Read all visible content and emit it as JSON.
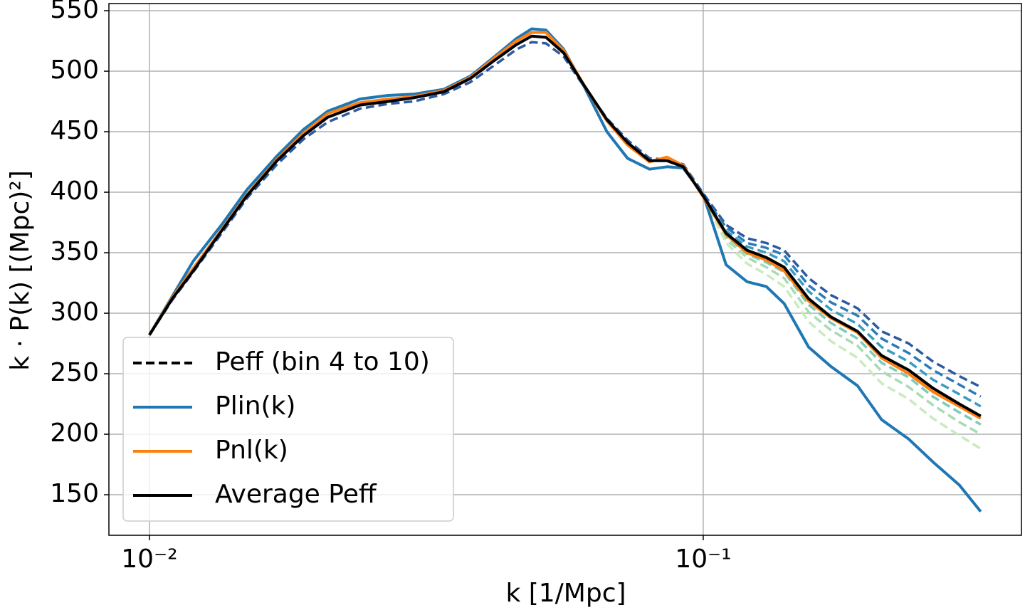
{
  "chart_data": {
    "type": "line",
    "xlabel": "k [1/Mpc]",
    "ylabel": "k · P(k) [(Mpc)²]",
    "xscale": "log",
    "grid": true,
    "xlim": [
      0.00845,
      0.3755
    ],
    "ylim": [
      116.5,
      555.9
    ],
    "xticks": [
      {
        "value": 0.01,
        "label": "10⁻²"
      },
      {
        "value": 0.1,
        "label": "10⁻¹"
      }
    ],
    "yticks": [
      150,
      200,
      250,
      300,
      350,
      400,
      450,
      500,
      550
    ],
    "x": [
      0.01,
      0.011,
      0.012,
      0.0135,
      0.015,
      0.017,
      0.019,
      0.021,
      0.024,
      0.027,
      0.03,
      0.034,
      0.038,
      0.042,
      0.046,
      0.049,
      0.052,
      0.056,
      0.061,
      0.067,
      0.073,
      0.08,
      0.086,
      0.092,
      0.1,
      0.11,
      0.12,
      0.13,
      0.14,
      0.155,
      0.17,
      0.19,
      0.21,
      0.235,
      0.26,
      0.29,
      0.317
    ],
    "legend": {
      "loc": "lower left",
      "extra": {
        "name": "Peff (bin 4 to 10)",
        "color": "#000000",
        "dashed": true
      }
    },
    "series": [
      {
        "color": "#2c5aa0",
        "dashed": true,
        "values": [
          282,
          311,
          334,
          366,
          395,
          423,
          444,
          458,
          469,
          473,
          475,
          481,
          491,
          505,
          518,
          524,
          523,
          512,
          487,
          461,
          443,
          428,
          427,
          423,
          399,
          373,
          362,
          358,
          352,
          329,
          315,
          304,
          285,
          275,
          260,
          248,
          239
        ]
      },
      {
        "color": "#2b7bb9",
        "dashed": true,
        "values": [
          282,
          312,
          335,
          368,
          397,
          426,
          447,
          462,
          472,
          475,
          478,
          483,
          494,
          509,
          522,
          529,
          528,
          515,
          488,
          460,
          441,
          426,
          426,
          421,
          397,
          371,
          358,
          354,
          348,
          323,
          309,
          298,
          279,
          267,
          253,
          241,
          231
        ]
      },
      {
        "color": "#3a9cc0",
        "dashed": true,
        "values": [
          282,
          312,
          335,
          368,
          397,
          426,
          447,
          462,
          472,
          475,
          478,
          483,
          494,
          509,
          522,
          529,
          528,
          515,
          488,
          460,
          441,
          426,
          426,
          421,
          397,
          368,
          355,
          350,
          343,
          318,
          303,
          291,
          272,
          260,
          245,
          233,
          223
        ]
      },
      {
        "color": "#5bb8bd",
        "dashed": true,
        "values": [
          282,
          312,
          335,
          368,
          397,
          426,
          447,
          462,
          472,
          475,
          478,
          483,
          494,
          509,
          522,
          529,
          528,
          515,
          488,
          460,
          441,
          426,
          426,
          421,
          397,
          366,
          352,
          346,
          338,
          312,
          297,
          285,
          265,
          253,
          238,
          225,
          215
        ]
      },
      {
        "color": "#7ccbb8",
        "dashed": true,
        "values": [
          282,
          312,
          335,
          368,
          397,
          426,
          447,
          462,
          472,
          475,
          478,
          483,
          494,
          509,
          522,
          529,
          528,
          515,
          488,
          460,
          441,
          426,
          426,
          421,
          397,
          364,
          349,
          342,
          334,
          307,
          292,
          279,
          259,
          247,
          231,
          218,
          208
        ]
      },
      {
        "color": "#a6dcb3",
        "dashed": true,
        "values": [
          282,
          312,
          335,
          368,
          397,
          426,
          447,
          462,
          472,
          475,
          478,
          483,
          494,
          509,
          522,
          529,
          528,
          515,
          488,
          460,
          441,
          426,
          426,
          421,
          397,
          361,
          346,
          338,
          329,
          301,
          286,
          273,
          252,
          239,
          224,
          210,
          200
        ]
      },
      {
        "color": "#c9ebbd",
        "dashed": true,
        "values": [
          282,
          312,
          335,
          368,
          397,
          426,
          447,
          462,
          472,
          475,
          478,
          483,
          494,
          509,
          522,
          529,
          528,
          515,
          488,
          460,
          441,
          426,
          426,
          421,
          397,
          358,
          341,
          332,
          322,
          293,
          277,
          263,
          242,
          229,
          213,
          199,
          188
        ]
      },
      {
        "name": "Plin(k)",
        "color": "#1f77b4",
        "values": [
          282,
          314,
          343,
          373,
          402,
          430,
          452,
          467,
          477,
          480,
          481,
          485,
          496,
          512,
          527,
          535,
          534,
          518,
          487,
          450,
          428,
          419,
          421,
          420,
          398,
          340,
          326,
          322,
          308,
          272,
          256,
          240,
          212,
          196,
          177,
          158,
          136
        ]
      },
      {
        "name": "Pnl(k)",
        "color": "#ff7f0e",
        "values": [
          282,
          313,
          337,
          369,
          398,
          427,
          449,
          465,
          474,
          477,
          479,
          484,
          495,
          511,
          525,
          532,
          532,
          517,
          488,
          459,
          439,
          425,
          429,
          422,
          396,
          365,
          350,
          344,
          335,
          310,
          296,
          284,
          263,
          250,
          235,
          223,
          213
        ]
      },
      {
        "name": "Average Peff",
        "color": "#000000",
        "values": [
          282,
          312,
          335,
          368,
          397,
          426,
          447,
          462,
          472,
          475,
          478,
          483,
          494,
          509,
          522,
          529,
          528,
          515,
          488,
          460,
          441,
          426,
          426,
          421,
          397,
          366,
          352,
          346,
          338,
          312,
          297,
          285,
          265,
          253,
          238,
          225,
          215
        ]
      }
    ]
  }
}
